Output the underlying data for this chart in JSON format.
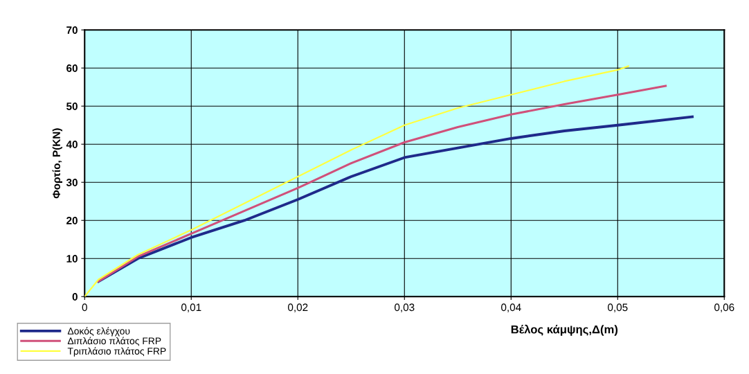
{
  "chart_data": {
    "type": "line",
    "xlabel": "Βέλος κάμψης,Δ(m)",
    "ylabel": "Φορτίο, P(KN)",
    "xlim": [
      0,
      0.06
    ],
    "xticks": [
      0,
      {
        "value": 0.01,
        "label": "0,01"
      },
      {
        "value": 0.02,
        "label": "0,02"
      },
      {
        "value": 0.03,
        "label": "0,03"
      },
      {
        "value": 0.04,
        "label": "0,04"
      },
      {
        "value": 0.05,
        "label": "0,05"
      },
      {
        "value": 0.06,
        "label": "0,06"
      }
    ],
    "ylim": [
      0,
      70
    ],
    "yticks": [
      0,
      10,
      20,
      30,
      40,
      50,
      60,
      70
    ],
    "grid": true,
    "legend": "bottom left",
    "marker": "none",
    "line_style": "solid",
    "series": [
      {
        "name": "Δοκός ελέγχου",
        "color": "#1f2a8a",
        "x": [
          0.0013,
          0.005,
          0.01,
          0.015,
          0.02,
          0.025,
          0.03,
          0.035,
          0.04,
          0.045,
          0.05,
          0.057
        ],
        "values": [
          4,
          10,
          15.5,
          20,
          25.5,
          31.5,
          36.5,
          39,
          41.5,
          43.5,
          45,
          47.2
        ]
      },
      {
        "name": "Διπλάσιο πλάτος FRP",
        "color": "#d0507a",
        "x": [
          0.0013,
          0.005,
          0.01,
          0.015,
          0.02,
          0.025,
          0.03,
          0.035,
          0.04,
          0.045,
          0.05,
          0.0545
        ],
        "values": [
          4,
          10.5,
          16.5,
          22.5,
          28.5,
          35,
          40.5,
          44.5,
          47.8,
          50.5,
          53,
          55.3
        ]
      },
      {
        "name": "Τριπλάσιο πλάτος FRP",
        "color": "#ffff40",
        "x": [
          0,
          0.0013,
          0.005,
          0.01,
          0.015,
          0.02,
          0.025,
          0.03,
          0.035,
          0.04,
          0.045,
          0.05,
          0.051
        ],
        "values": [
          0,
          4.5,
          11,
          17.5,
          24.5,
          31.5,
          38.5,
          45,
          49.5,
          53,
          56.5,
          59.5,
          60.5
        ]
      }
    ]
  }
}
